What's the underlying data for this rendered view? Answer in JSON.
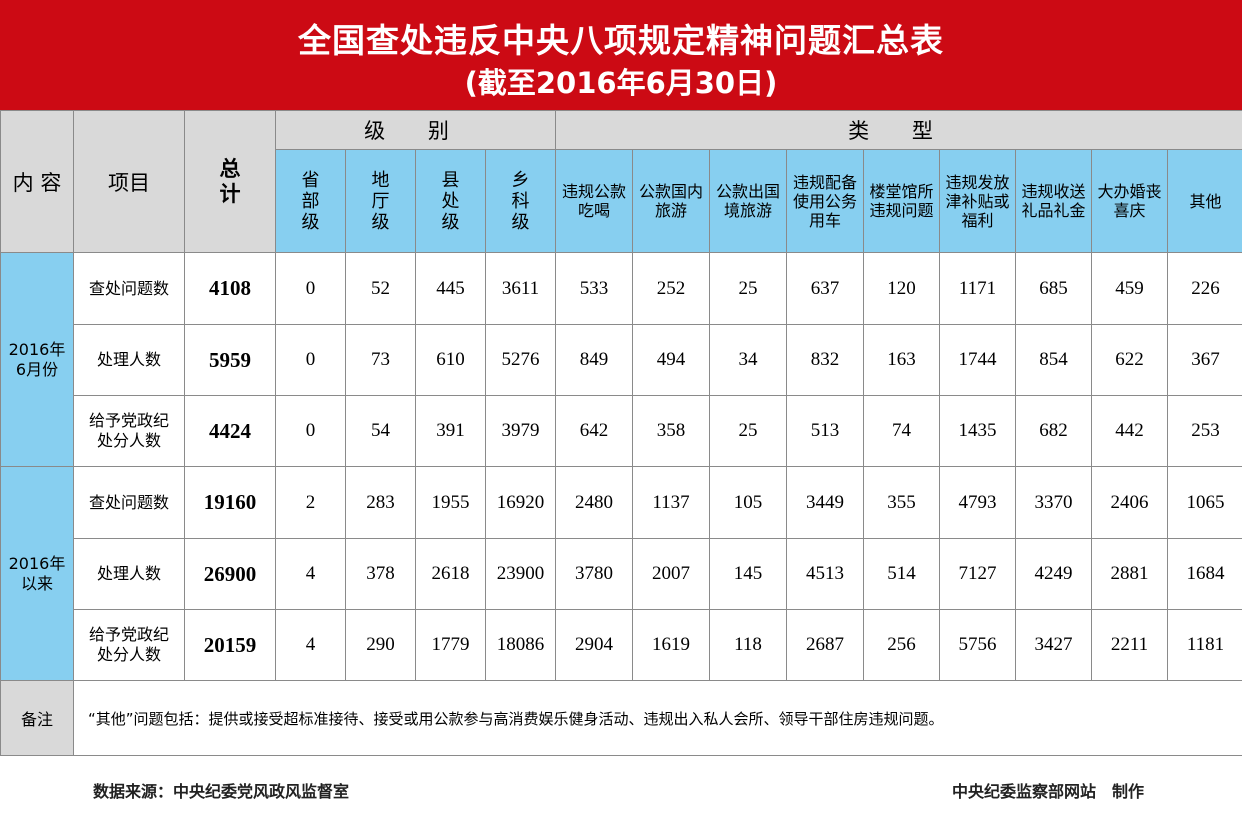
{
  "title": {
    "main": "全国查处违反中央八项规定精神问题汇总表",
    "sub": "(截至2016年6月30日)"
  },
  "header": {
    "content": "内 容",
    "item": "项目",
    "total_top": "总",
    "total_bottom": "计",
    "level_group": "级 别",
    "type_group": "类 型",
    "levels": [
      [
        "省",
        "部",
        "级"
      ],
      [
        "地",
        "厅",
        "级"
      ],
      [
        "县",
        "处",
        "级"
      ],
      [
        "乡",
        "科",
        "级"
      ]
    ],
    "types": [
      [
        "违规公款",
        "吃喝"
      ],
      [
        "公款国内",
        "旅游"
      ],
      [
        "公款出国",
        "境旅游"
      ],
      [
        "违规配备",
        "使用公务",
        "用车"
      ],
      [
        "楼堂馆所",
        "违规问题"
      ],
      [
        "违规发放",
        "津补贴或",
        "福利"
      ],
      [
        "违规收送",
        "礼品礼金"
      ],
      [
        "大办婚丧",
        "喜庆"
      ],
      [
        "其他"
      ]
    ]
  },
  "periods": [
    {
      "label_lines": [
        "2016年",
        "6月份"
      ],
      "rows": [
        {
          "item": [
            "查处问题数"
          ],
          "total": "4108",
          "values": [
            "0",
            "52",
            "445",
            "3611",
            "533",
            "252",
            "25",
            "637",
            "120",
            "1171",
            "685",
            "459",
            "226"
          ]
        },
        {
          "item": [
            "处理人数"
          ],
          "total": "5959",
          "values": [
            "0",
            "73",
            "610",
            "5276",
            "849",
            "494",
            "34",
            "832",
            "163",
            "1744",
            "854",
            "622",
            "367"
          ]
        },
        {
          "item": [
            "给予党政纪",
            "处分人数"
          ],
          "total": "4424",
          "values": [
            "0",
            "54",
            "391",
            "3979",
            "642",
            "358",
            "25",
            "513",
            "74",
            "1435",
            "682",
            "442",
            "253"
          ]
        }
      ]
    },
    {
      "label_lines": [
        "2016年",
        "以来"
      ],
      "rows": [
        {
          "item": [
            "查处问题数"
          ],
          "total": "19160",
          "values": [
            "2",
            "283",
            "1955",
            "16920",
            "2480",
            "1137",
            "105",
            "3449",
            "355",
            "4793",
            "3370",
            "2406",
            "1065"
          ]
        },
        {
          "item": [
            "处理人数"
          ],
          "total": "26900",
          "values": [
            "4",
            "378",
            "2618",
            "23900",
            "3780",
            "2007",
            "145",
            "4513",
            "514",
            "7127",
            "4249",
            "2881",
            "1684"
          ]
        },
        {
          "item": [
            "给予党政纪",
            "处分人数"
          ],
          "total": "20159",
          "values": [
            "4",
            "290",
            "1779",
            "18086",
            "2904",
            "1619",
            "118",
            "2687",
            "256",
            "5756",
            "3427",
            "2211",
            "1181"
          ]
        }
      ]
    }
  ],
  "note": {
    "label": "备注",
    "text": "“其他”问题包括：提供或接受超标准接待、接受或用公款参与高消费娱乐健身活动、违规出入私人会所、领导干部住房违规问题。"
  },
  "footer": {
    "source": "数据来源：中央纪委党风政风监督室",
    "maker": "中央纪委监察部网站　制作"
  },
  "colors": {
    "title_red": "#cc0a14",
    "header_gray": "#d9d9d9",
    "header_blue": "#87cff0"
  }
}
